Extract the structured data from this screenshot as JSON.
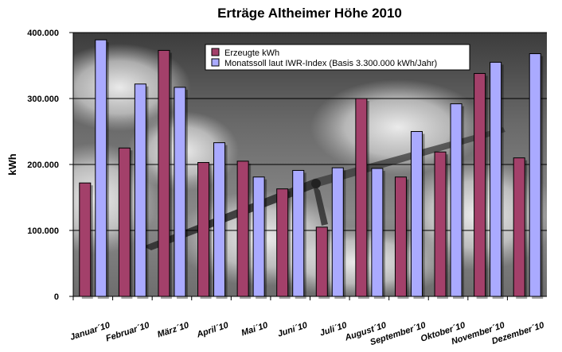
{
  "chart_data": {
    "type": "bar",
    "title": "Erträge Altheimer Höhe 2010",
    "xlabel": "",
    "ylabel": "kWh",
    "ylim": [
      0,
      400000
    ],
    "yticks": [
      0,
      100000,
      200000,
      300000,
      400000
    ],
    "ytick_labels": [
      "0",
      "100.000",
      "200.000",
      "300.000",
      "400.000"
    ],
    "grid": true,
    "legend_position": "top-center",
    "categories": [
      "Januar´10",
      "Februar´10",
      "März´10",
      "April´10",
      "Mai´10",
      "Juni´10",
      "Juli´10",
      "August´10",
      "September´10",
      "Oktober´10",
      "November´10",
      "Dezember´10"
    ],
    "series": [
      {
        "name": "Erzeugte kWh",
        "color": "#a3406a",
        "values": [
          172000,
          225000,
          373000,
          203000,
          205000,
          163000,
          105000,
          300000,
          181000,
          219000,
          338000,
          210000
        ]
      },
      {
        "name": "Monatssoll laut IWR-Index (Basis 3.300.000 kWh/Jahr)",
        "color": "#aaaaff",
        "values": [
          389000,
          322000,
          317000,
          233000,
          181000,
          191000,
          195000,
          194000,
          250000,
          292000,
          355000,
          368000
        ]
      }
    ]
  }
}
